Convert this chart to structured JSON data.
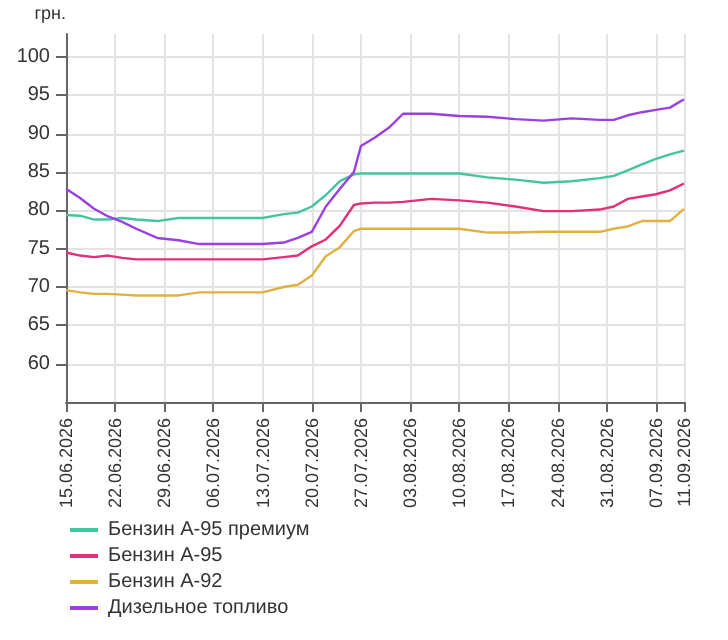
{
  "chart_data": {
    "type": "line",
    "ylabel": "грн.",
    "x": [
      "2026-06-15",
      "2026-06-17",
      "2026-06-19",
      "2026-06-21",
      "2026-06-23",
      "2026-06-25",
      "2026-06-28",
      "2026-07-01",
      "2026-07-04",
      "2026-07-07",
      "2026-07-10",
      "2026-07-13",
      "2026-07-16",
      "2026-07-18",
      "2026-07-20",
      "2026-07-22",
      "2026-07-24",
      "2026-07-26",
      "2026-07-27",
      "2026-07-29",
      "2026-07-31",
      "2026-08-02",
      "2026-08-06",
      "2026-08-10",
      "2026-08-14",
      "2026-08-18",
      "2026-08-22",
      "2026-08-26",
      "2026-08-30",
      "2026-09-01",
      "2026-09-03",
      "2026-09-05",
      "2026-09-07",
      "2026-09-09",
      "2026-09-11"
    ],
    "series": [
      {
        "name": "Бензин А-95 премиум",
        "color": "#45c4a0",
        "values": [
          79.4,
          79.3,
          78.8,
          78.8,
          79.0,
          78.8,
          78.6,
          79.0,
          79.0,
          79.0,
          79.0,
          79.0,
          79.5,
          79.7,
          80.5,
          82.0,
          83.8,
          84.7,
          84.8,
          84.8,
          84.8,
          84.8,
          84.8,
          84.8,
          84.3,
          84.0,
          83.6,
          83.8,
          84.2,
          84.5,
          85.2,
          86.0,
          86.7,
          87.3,
          87.8
        ]
      },
      {
        "name": "Бензин А-95",
        "color": "#e0307a",
        "values": [
          74.5,
          74.1,
          73.9,
          74.1,
          73.8,
          73.6,
          73.6,
          73.6,
          73.6,
          73.6,
          73.6,
          73.6,
          73.9,
          74.1,
          75.3,
          76.2,
          78.0,
          80.7,
          80.9,
          81.0,
          81.0,
          81.1,
          81.5,
          81.3,
          81.0,
          80.5,
          79.9,
          79.9,
          80.1,
          80.5,
          81.5,
          81.8,
          82.1,
          82.6,
          83.5
        ]
      },
      {
        "name": "Бензин А-92",
        "color": "#e0b040",
        "values": [
          69.6,
          69.3,
          69.1,
          69.1,
          69.0,
          68.9,
          68.9,
          68.9,
          69.3,
          69.3,
          69.3,
          69.3,
          70.0,
          70.3,
          71.5,
          74.0,
          75.2,
          77.3,
          77.6,
          77.6,
          77.6,
          77.6,
          77.6,
          77.6,
          77.1,
          77.1,
          77.2,
          77.2,
          77.2,
          77.6,
          77.9,
          78.6,
          78.6,
          78.6,
          80.2
        ]
      },
      {
        "name": "Дизельное топливо",
        "color": "#9b40e0",
        "values": [
          82.8,
          81.6,
          80.2,
          79.2,
          78.5,
          77.6,
          76.4,
          76.1,
          75.6,
          75.6,
          75.6,
          75.6,
          75.8,
          76.4,
          77.2,
          80.5,
          82.8,
          85.0,
          88.4,
          89.5,
          90.8,
          92.6,
          92.6,
          92.3,
          92.2,
          91.9,
          91.7,
          92.0,
          91.8,
          91.8,
          92.4,
          92.8,
          93.1,
          93.4,
          94.5
        ]
      }
    ],
    "xlim": [
      "2026-06-15",
      "2026-09-11"
    ],
    "xticks": [
      {
        "value": "2026-06-15",
        "label": "15.06.2026"
      },
      {
        "value": "2026-06-22",
        "label": "22.06.2026"
      },
      {
        "value": "2026-06-29",
        "label": "29.06.2026"
      },
      {
        "value": "2026-07-06",
        "label": "06.07.2026"
      },
      {
        "value": "2026-07-13",
        "label": "13.07.2026"
      },
      {
        "value": "2026-07-20",
        "label": "20.07.2026"
      },
      {
        "value": "2026-07-27",
        "label": "27.07.2026"
      },
      {
        "value": "2026-08-03",
        "label": "03.08.2026"
      },
      {
        "value": "2026-08-10",
        "label": "10.08.2026"
      },
      {
        "value": "2026-08-17",
        "label": "17.08.2026"
      },
      {
        "value": "2026-08-24",
        "label": "24.08.2026"
      },
      {
        "value": "2026-08-31",
        "label": "31.08.2026"
      },
      {
        "value": "2026-09-07",
        "label": "07.09.2026"
      },
      {
        "value": "2026-09-11",
        "label": "11.09.2026"
      }
    ],
    "ylim": [
      55,
      103
    ],
    "yticks": [
      60,
      65,
      70,
      75,
      80,
      85,
      90,
      95,
      100
    ],
    "grid": true,
    "legend": "bottom left",
    "marker": "none",
    "line_style": "solid"
  }
}
